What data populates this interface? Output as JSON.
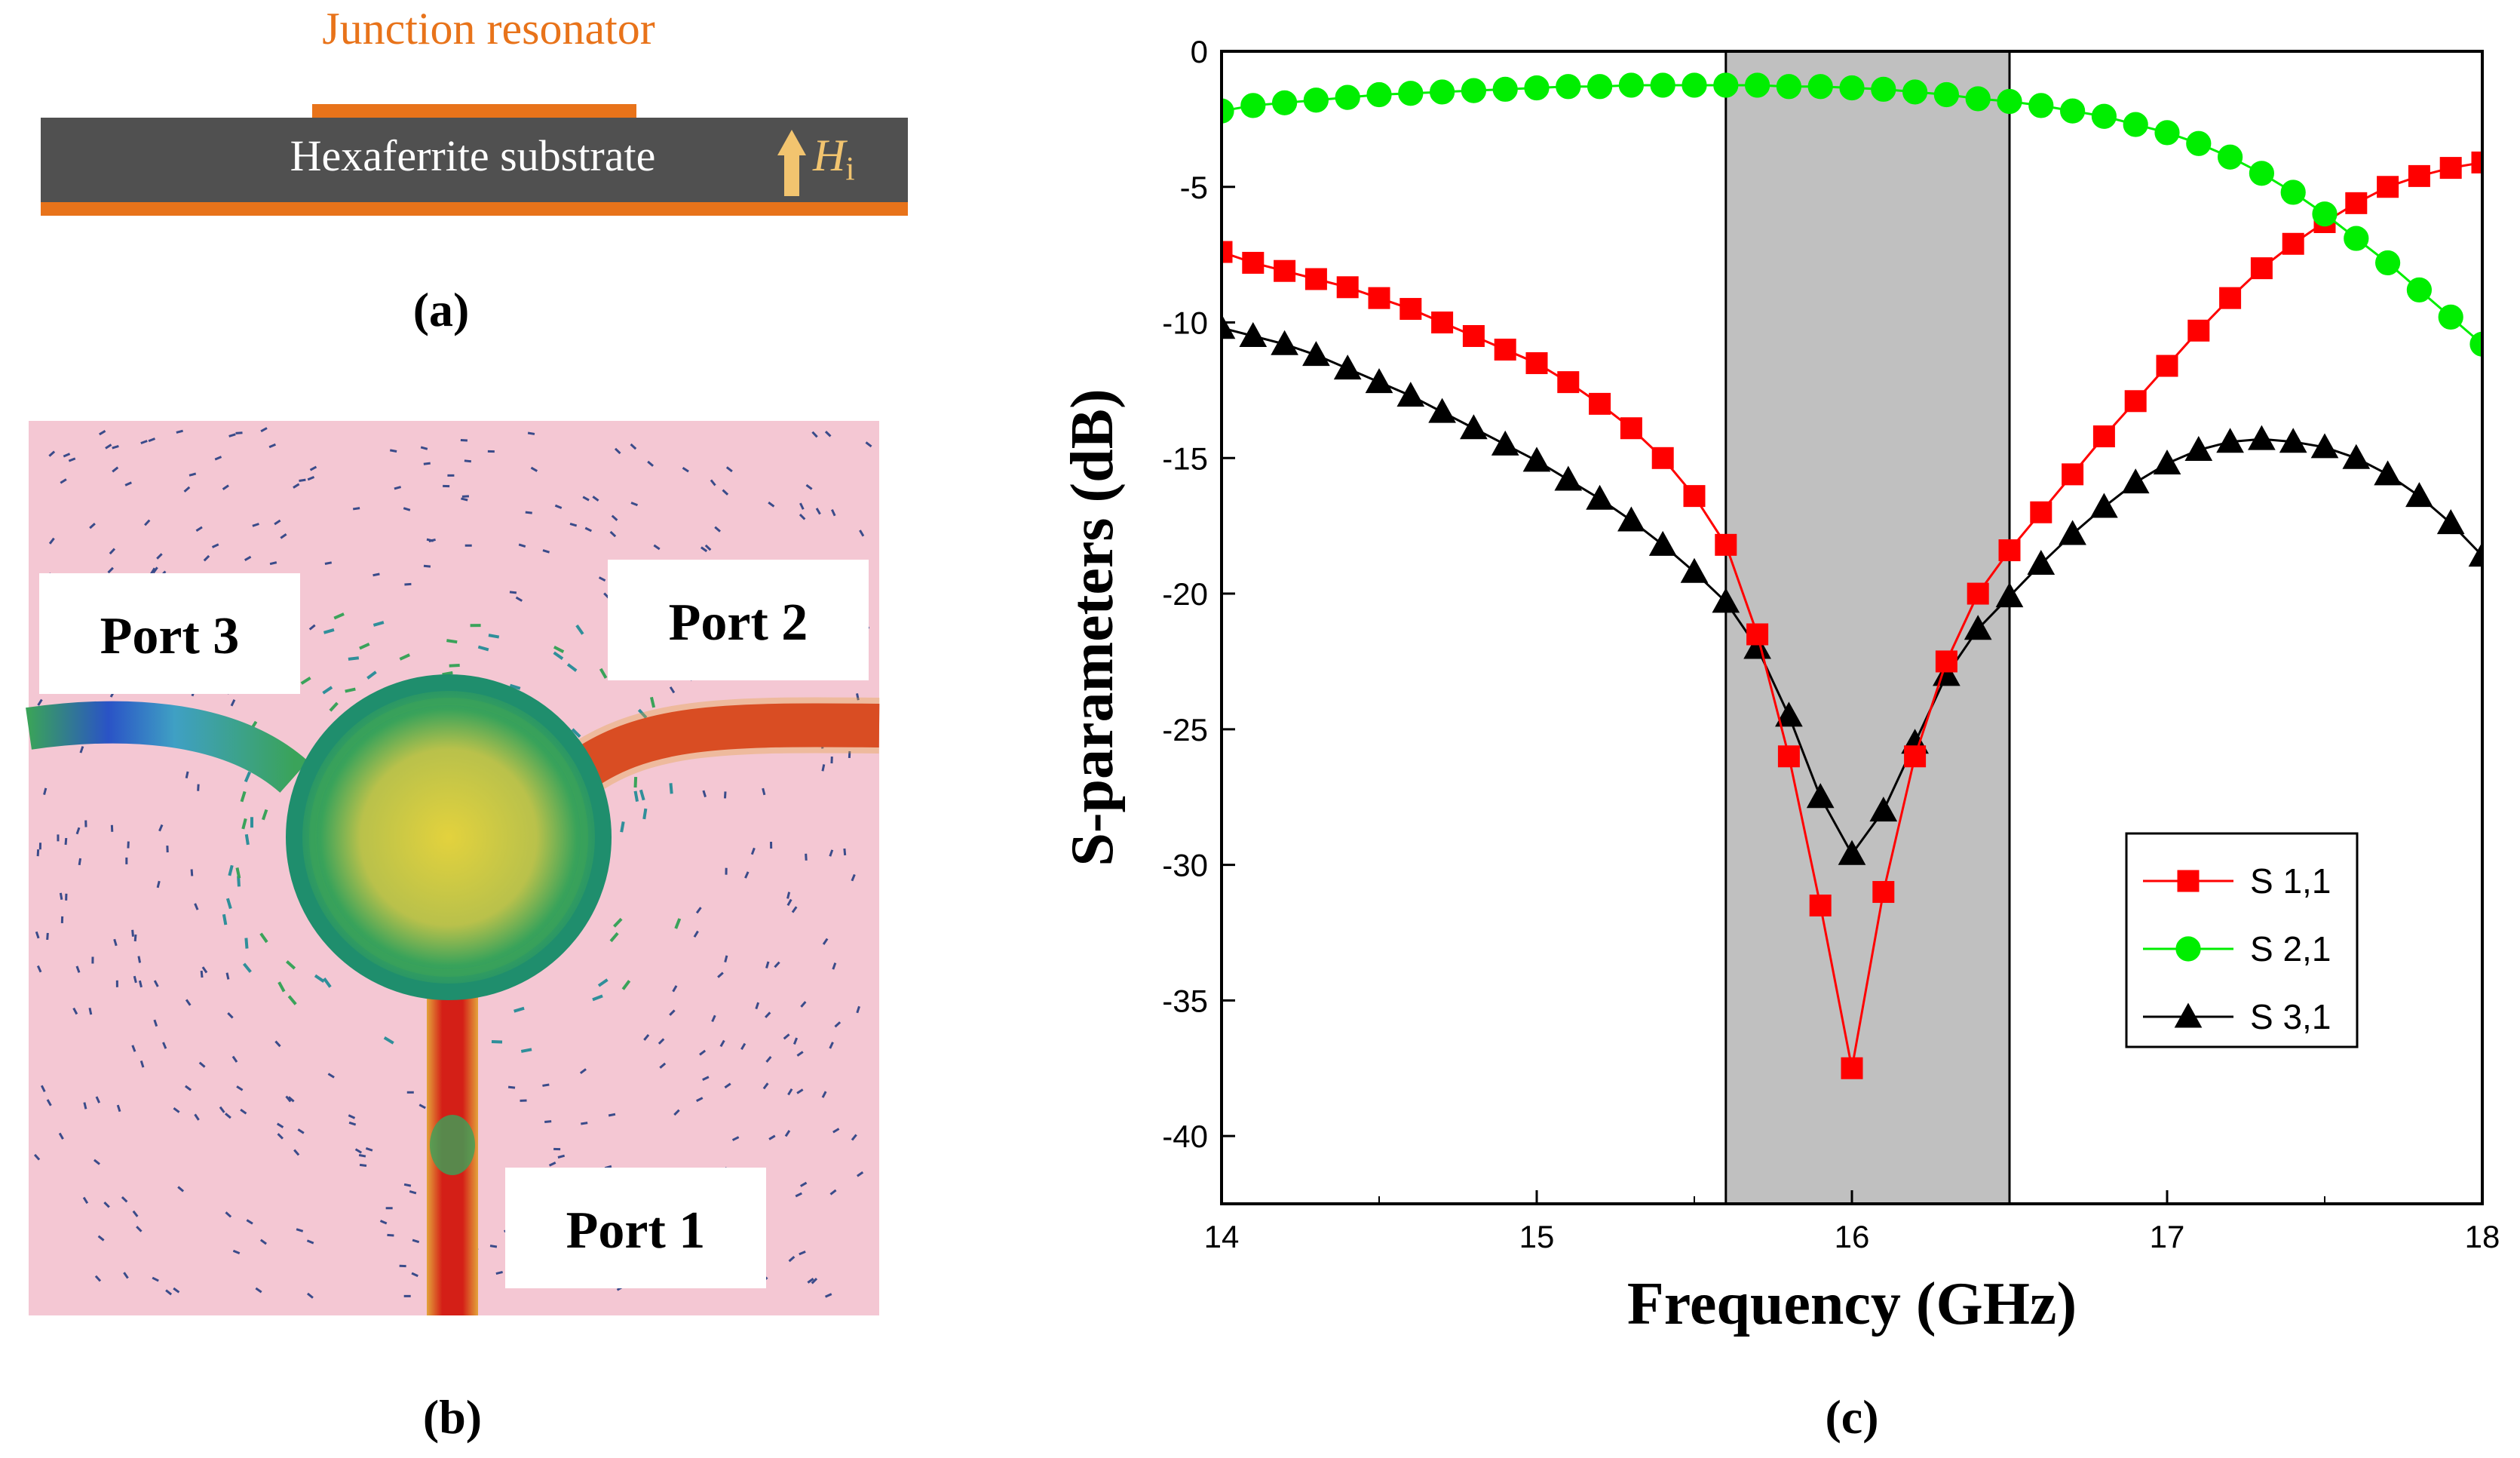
{
  "figure": {
    "panel_a": {
      "label": "(a)",
      "resonator_text": "Junction resonator",
      "substrate_text": "Hexaferrite substrate",
      "field_symbol": "H",
      "field_subscript": "i",
      "colors": {
        "metal": "#e8731a",
        "substrate": "#505050",
        "arrow": "#f2c46f",
        "text": "#e8731a"
      }
    },
    "panel_b": {
      "label": "(b)",
      "ports": [
        "Port 1",
        "Port 2",
        "Port 3"
      ],
      "colors": {
        "background": "#f4c7d3",
        "hot": "#d41f17",
        "mid": "#e3d23d",
        "cool": "#3aa35a",
        "low": "#2a53c6"
      }
    },
    "panel_c": {
      "label": "(c)"
    }
  },
  "chart_data": {
    "type": "line",
    "xlabel": "Frequency (GHz)",
    "ylabel": "S-parameters (dB)",
    "xlim": [
      14,
      18
    ],
    "ylim": [
      -42.5,
      0
    ],
    "xticks": [
      14,
      15,
      16,
      17,
      18
    ],
    "yticks": [
      0,
      -5,
      -10,
      -15,
      -20,
      -25,
      -30,
      -35,
      -40
    ],
    "grid": false,
    "legend_position": "bottom-right",
    "shaded_band": {
      "x_from": 15.6,
      "x_to": 16.5,
      "color": "#c0c0c0"
    },
    "x": [
      14.0,
      14.1,
      14.2,
      14.3,
      14.4,
      14.5,
      14.6,
      14.7,
      14.8,
      14.9,
      15.0,
      15.1,
      15.2,
      15.3,
      15.4,
      15.5,
      15.6,
      15.7,
      15.8,
      15.9,
      16.0,
      16.1,
      16.2,
      16.3,
      16.4,
      16.5,
      16.6,
      16.7,
      16.8,
      16.9,
      17.0,
      17.1,
      17.2,
      17.3,
      17.4,
      17.5,
      17.6,
      17.7,
      17.8,
      17.9,
      18.0
    ],
    "series": [
      {
        "name": "S 1,1",
        "color": "#ff0000",
        "marker": "square",
        "values": [
          -7.4,
          -7.8,
          -8.1,
          -8.4,
          -8.7,
          -9.1,
          -9.5,
          -10.0,
          -10.5,
          -11.0,
          -11.5,
          -12.2,
          -13.0,
          -13.9,
          -15.0,
          -16.4,
          -18.2,
          -21.5,
          -26.0,
          -31.5,
          -37.5,
          -31.0,
          -26.0,
          -22.5,
          -20.0,
          -18.4,
          -17.0,
          -15.6,
          -14.2,
          -12.9,
          -11.6,
          -10.3,
          -9.1,
          -8.0,
          -7.1,
          -6.3,
          -5.6,
          -5.0,
          -4.6,
          -4.3,
          -4.1
        ]
      },
      {
        "name": "S 2,1",
        "color": "#00ee00",
        "marker": "circle",
        "values": [
          -2.2,
          -2.0,
          -1.9,
          -1.8,
          -1.7,
          -1.6,
          -1.55,
          -1.5,
          -1.45,
          -1.4,
          -1.35,
          -1.3,
          -1.3,
          -1.25,
          -1.25,
          -1.25,
          -1.25,
          -1.25,
          -1.3,
          -1.3,
          -1.35,
          -1.4,
          -1.5,
          -1.6,
          -1.75,
          -1.85,
          -2.0,
          -2.2,
          -2.4,
          -2.7,
          -3.0,
          -3.4,
          -3.9,
          -4.5,
          -5.2,
          -6.0,
          -6.9,
          -7.8,
          -8.8,
          -9.8,
          -10.8
        ]
      },
      {
        "name": "S 3,1",
        "color": "#000000",
        "marker": "triangle",
        "values": [
          -10.2,
          -10.5,
          -10.8,
          -11.2,
          -11.7,
          -12.2,
          -12.7,
          -13.3,
          -13.9,
          -14.5,
          -15.1,
          -15.8,
          -16.5,
          -17.3,
          -18.2,
          -19.2,
          -20.3,
          -22.0,
          -24.5,
          -27.5,
          -29.6,
          -28.0,
          -25.5,
          -23.0,
          -21.3,
          -20.1,
          -18.9,
          -17.8,
          -16.8,
          -15.9,
          -15.2,
          -14.7,
          -14.4,
          -14.3,
          -14.4,
          -14.6,
          -15.0,
          -15.6,
          -16.4,
          -17.4,
          -18.6
        ]
      }
    ]
  }
}
